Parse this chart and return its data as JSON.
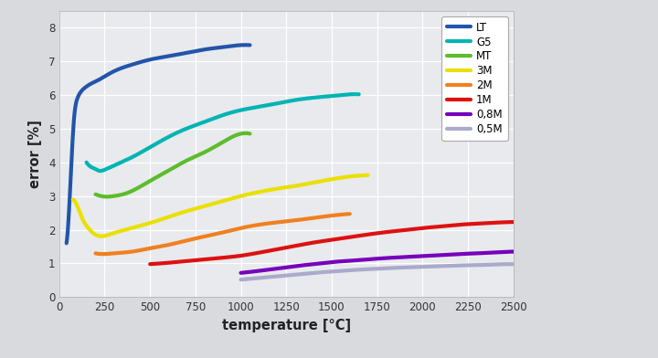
{
  "xlabel": "temperature [°C]",
  "ylabel": "error [%]",
  "xlim": [
    0,
    2500
  ],
  "ylim": [
    0,
    8.5
  ],
  "xticks": [
    0,
    250,
    500,
    750,
    1000,
    1250,
    1500,
    1750,
    2000,
    2250,
    2500
  ],
  "yticks": [
    0,
    1,
    2,
    3,
    4,
    5,
    6,
    7,
    8
  ],
  "plot_bg": "#e8eaed",
  "fig_bg": "#d8dadd",
  "series": [
    {
      "label": "LT",
      "color": "#2255AA",
      "x": [
        40,
        60,
        80,
        100,
        120,
        150,
        180,
        200,
        250,
        300,
        400,
        500,
        600,
        700,
        800,
        900,
        1000,
        1050
      ],
      "y": [
        1.6,
        3.2,
        5.2,
        5.9,
        6.1,
        6.25,
        6.35,
        6.4,
        6.55,
        6.7,
        6.9,
        7.05,
        7.15,
        7.25,
        7.35,
        7.42,
        7.48,
        7.48
      ],
      "linewidth": 3.0
    },
    {
      "label": "G5",
      "color": "#00B4B4",
      "x": [
        150,
        180,
        200,
        220,
        250,
        300,
        400,
        500,
        600,
        700,
        800,
        900,
        1000,
        1100,
        1200,
        1300,
        1400,
        1500,
        1600,
        1650
      ],
      "y": [
        4.0,
        3.85,
        3.8,
        3.75,
        3.78,
        3.9,
        4.15,
        4.45,
        4.75,
        5.0,
        5.2,
        5.4,
        5.55,
        5.65,
        5.75,
        5.85,
        5.92,
        5.97,
        6.02,
        6.02
      ],
      "linewidth": 3.0
    },
    {
      "label": "MT",
      "color": "#5BBD2A",
      "x": [
        200,
        230,
        260,
        300,
        350,
        400,
        500,
        600,
        700,
        800,
        900,
        1000,
        1050
      ],
      "y": [
        3.05,
        3.0,
        2.98,
        3.0,
        3.05,
        3.15,
        3.45,
        3.75,
        4.05,
        4.3,
        4.6,
        4.85,
        4.85
      ],
      "linewidth": 3.0
    },
    {
      "label": "3M",
      "color": "#EAE000",
      "x": [
        75,
        100,
        130,
        160,
        200,
        250,
        300,
        400,
        500,
        600,
        700,
        800,
        900,
        1000,
        1100,
        1200,
        1300,
        1400,
        1500,
        1600,
        1700
      ],
      "y": [
        2.9,
        2.7,
        2.3,
        2.05,
        1.85,
        1.82,
        1.9,
        2.05,
        2.2,
        2.38,
        2.55,
        2.7,
        2.85,
        3.0,
        3.12,
        3.22,
        3.3,
        3.4,
        3.5,
        3.58,
        3.62
      ],
      "linewidth": 3.0
    },
    {
      "label": "2M",
      "color": "#F08020",
      "x": [
        200,
        250,
        300,
        400,
        500,
        600,
        700,
        800,
        900,
        1000,
        1100,
        1200,
        1300,
        1400,
        1500,
        1600
      ],
      "y": [
        1.3,
        1.28,
        1.3,
        1.35,
        1.45,
        1.55,
        1.68,
        1.8,
        1.92,
        2.05,
        2.15,
        2.22,
        2.28,
        2.35,
        2.42,
        2.47
      ],
      "linewidth": 3.0
    },
    {
      "label": "1M",
      "color": "#DD1111",
      "x": [
        500,
        600,
        700,
        800,
        900,
        1000,
        1100,
        1200,
        1300,
        1400,
        1500,
        1600,
        1700,
        1800,
        1900,
        2000,
        2100,
        2200,
        2300,
        2400,
        2500
      ],
      "y": [
        0.98,
        1.02,
        1.07,
        1.12,
        1.17,
        1.23,
        1.32,
        1.42,
        1.52,
        1.62,
        1.7,
        1.78,
        1.86,
        1.93,
        1.99,
        2.05,
        2.1,
        2.15,
        2.18,
        2.21,
        2.23
      ],
      "linewidth": 3.0
    },
    {
      "label": "0,8M",
      "color": "#7700BB",
      "x": [
        1000,
        1100,
        1200,
        1300,
        1400,
        1500,
        1600,
        1700,
        1800,
        1900,
        2000,
        2100,
        2200,
        2300,
        2400,
        2500
      ],
      "y": [
        0.72,
        0.78,
        0.85,
        0.92,
        0.98,
        1.04,
        1.08,
        1.12,
        1.16,
        1.19,
        1.22,
        1.25,
        1.28,
        1.3,
        1.33,
        1.35
      ],
      "linewidth": 3.0
    },
    {
      "label": "0,5M",
      "color": "#AAAACC",
      "x": [
        1000,
        1100,
        1200,
        1300,
        1400,
        1500,
        1600,
        1700,
        1800,
        1900,
        2000,
        2100,
        2200,
        2300,
        2400,
        2500
      ],
      "y": [
        0.52,
        0.57,
        0.62,
        0.67,
        0.72,
        0.76,
        0.8,
        0.83,
        0.86,
        0.88,
        0.9,
        0.92,
        0.94,
        0.95,
        0.97,
        0.98
      ],
      "linewidth": 3.0
    }
  ]
}
